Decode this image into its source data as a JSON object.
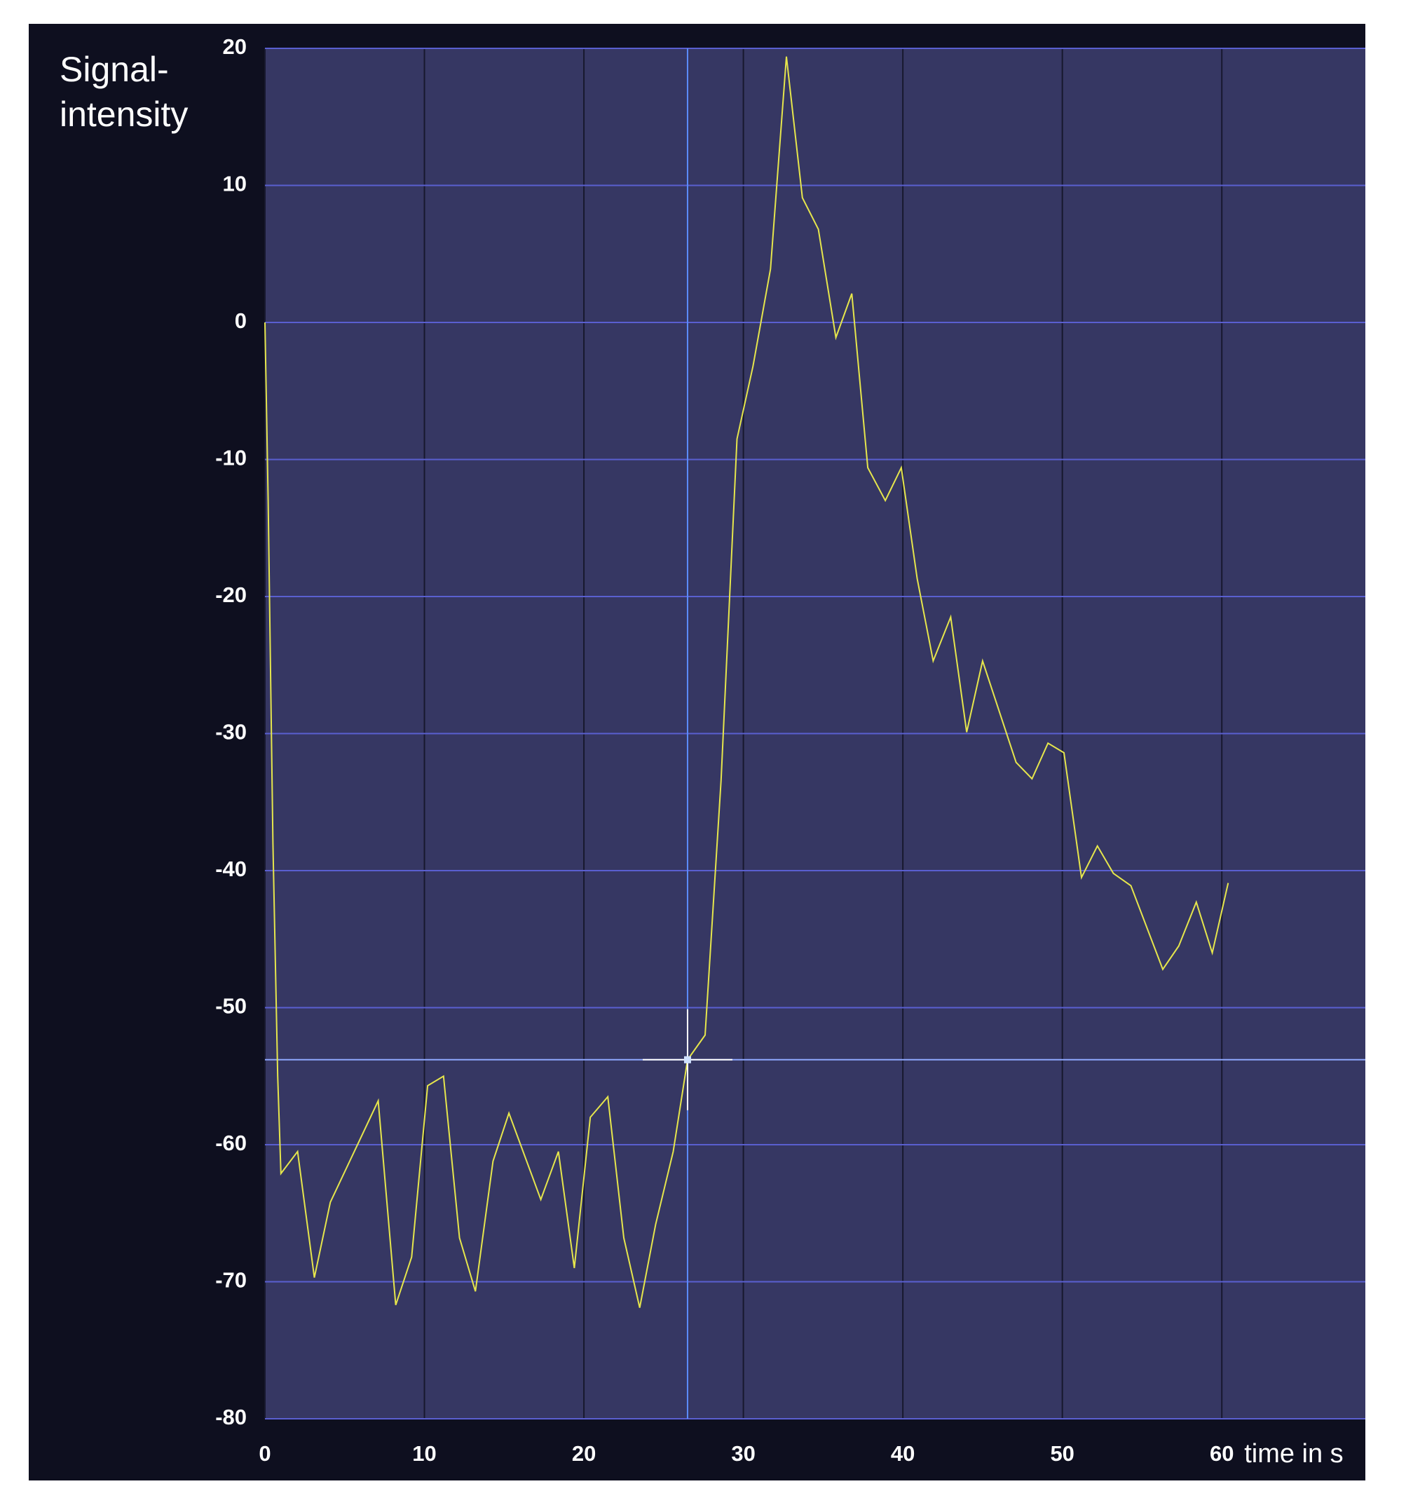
{
  "chart_data": {
    "type": "line",
    "ylabel": [
      "Signal-",
      "intensity"
    ],
    "xlabel": "time in s",
    "x": [
      0,
      0.2,
      0.5,
      0.8,
      1.0,
      2.05,
      3.1,
      4.1,
      7.1,
      8.2,
      9.2,
      10.2,
      11.2,
      12.2,
      13.2,
      14.3,
      15.3,
      17.3,
      18.4,
      19.4,
      20.4,
      21.5,
      22.5,
      23.5,
      24.5,
      25.6,
      26.5,
      27.6,
      28.6,
      29.6,
      30.6,
      31.7,
      32.7,
      33.7,
      34.7,
      35.8,
      36.8,
      37.8,
      38.9,
      39.9,
      40.9,
      41.9,
      43,
      44,
      45,
      47.1,
      48.1,
      49.1,
      50.1,
      51.2,
      52.2,
      53.2,
      54.3,
      56.3,
      57.3,
      58.4,
      59.4,
      60.4
    ],
    "values": [
      0,
      -13,
      -38,
      -55,
      -62.1,
      -60.5,
      -69.7,
      -64.2,
      -56.8,
      -71.7,
      -68.2,
      -55.7,
      -55,
      -66.8,
      -70.7,
      -61.2,
      -57.7,
      -64,
      -60.5,
      -69,
      -58,
      -56.5,
      -66.8,
      -71.9,
      -65.8,
      -60.5,
      -53.8,
      -52,
      -33.4,
      -8.5,
      -3.2,
      3.9,
      19.4,
      9.1,
      6.8,
      -1.1,
      2.1,
      -10.6,
      -13,
      -10.6,
      -18.7,
      -24.7,
      -21.5,
      -29.9,
      -24.7,
      -32.1,
      -33.3,
      -30.7,
      -31.4,
      -40.5,
      -38.2,
      -40.2,
      -41.1,
      -47.2,
      -45.5,
      -42.3,
      -46,
      -40.9
    ],
    "color": "#e6e64c",
    "cursor": {
      "x": 26.5,
      "y": -53.8
    },
    "xlim": [
      0,
      69
    ],
    "xticks": [
      0,
      10,
      20,
      30,
      40,
      50,
      60
    ],
    "ylim": [
      -80,
      20
    ],
    "yticks": [
      -80,
      -70,
      -60,
      -50,
      -40,
      -30,
      -20,
      -10,
      0,
      10,
      20
    ],
    "grid": true
  }
}
